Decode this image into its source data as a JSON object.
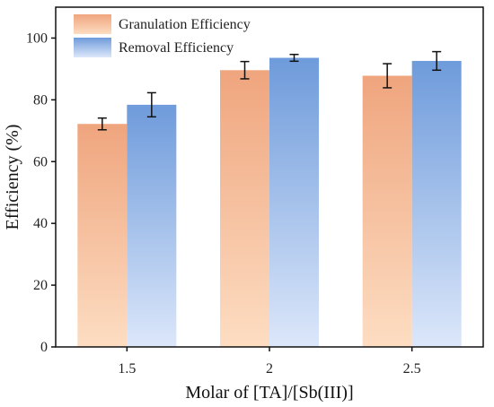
{
  "chart_data": {
    "type": "bar",
    "title": "",
    "xlabel": "Molar of [TA]/[Sb(III)]",
    "ylabel": "Efficiency (%)",
    "categories": [
      "1.5",
      "2",
      "2.5"
    ],
    "ylim": [
      0,
      110
    ],
    "yticks": [
      "0",
      "20",
      "40",
      "60",
      "80",
      "100"
    ],
    "grid": false,
    "legend_position": "top-left",
    "series": [
      {
        "name": "Granulation Efficiency",
        "values": [
          72.2,
          89.6,
          87.8
        ],
        "errors": [
          1.9,
          2.8,
          3.9
        ],
        "color_top": "#EFA57E",
        "color_bottom": "#FDDDC2"
      },
      {
        "name": "Removal Efficiency",
        "values": [
          78.4,
          93.6,
          92.6
        ],
        "errors": [
          3.9,
          1.1,
          3.0
        ],
        "color_top": "#6E9BDB",
        "color_bottom": "#DCE7FA"
      }
    ]
  }
}
